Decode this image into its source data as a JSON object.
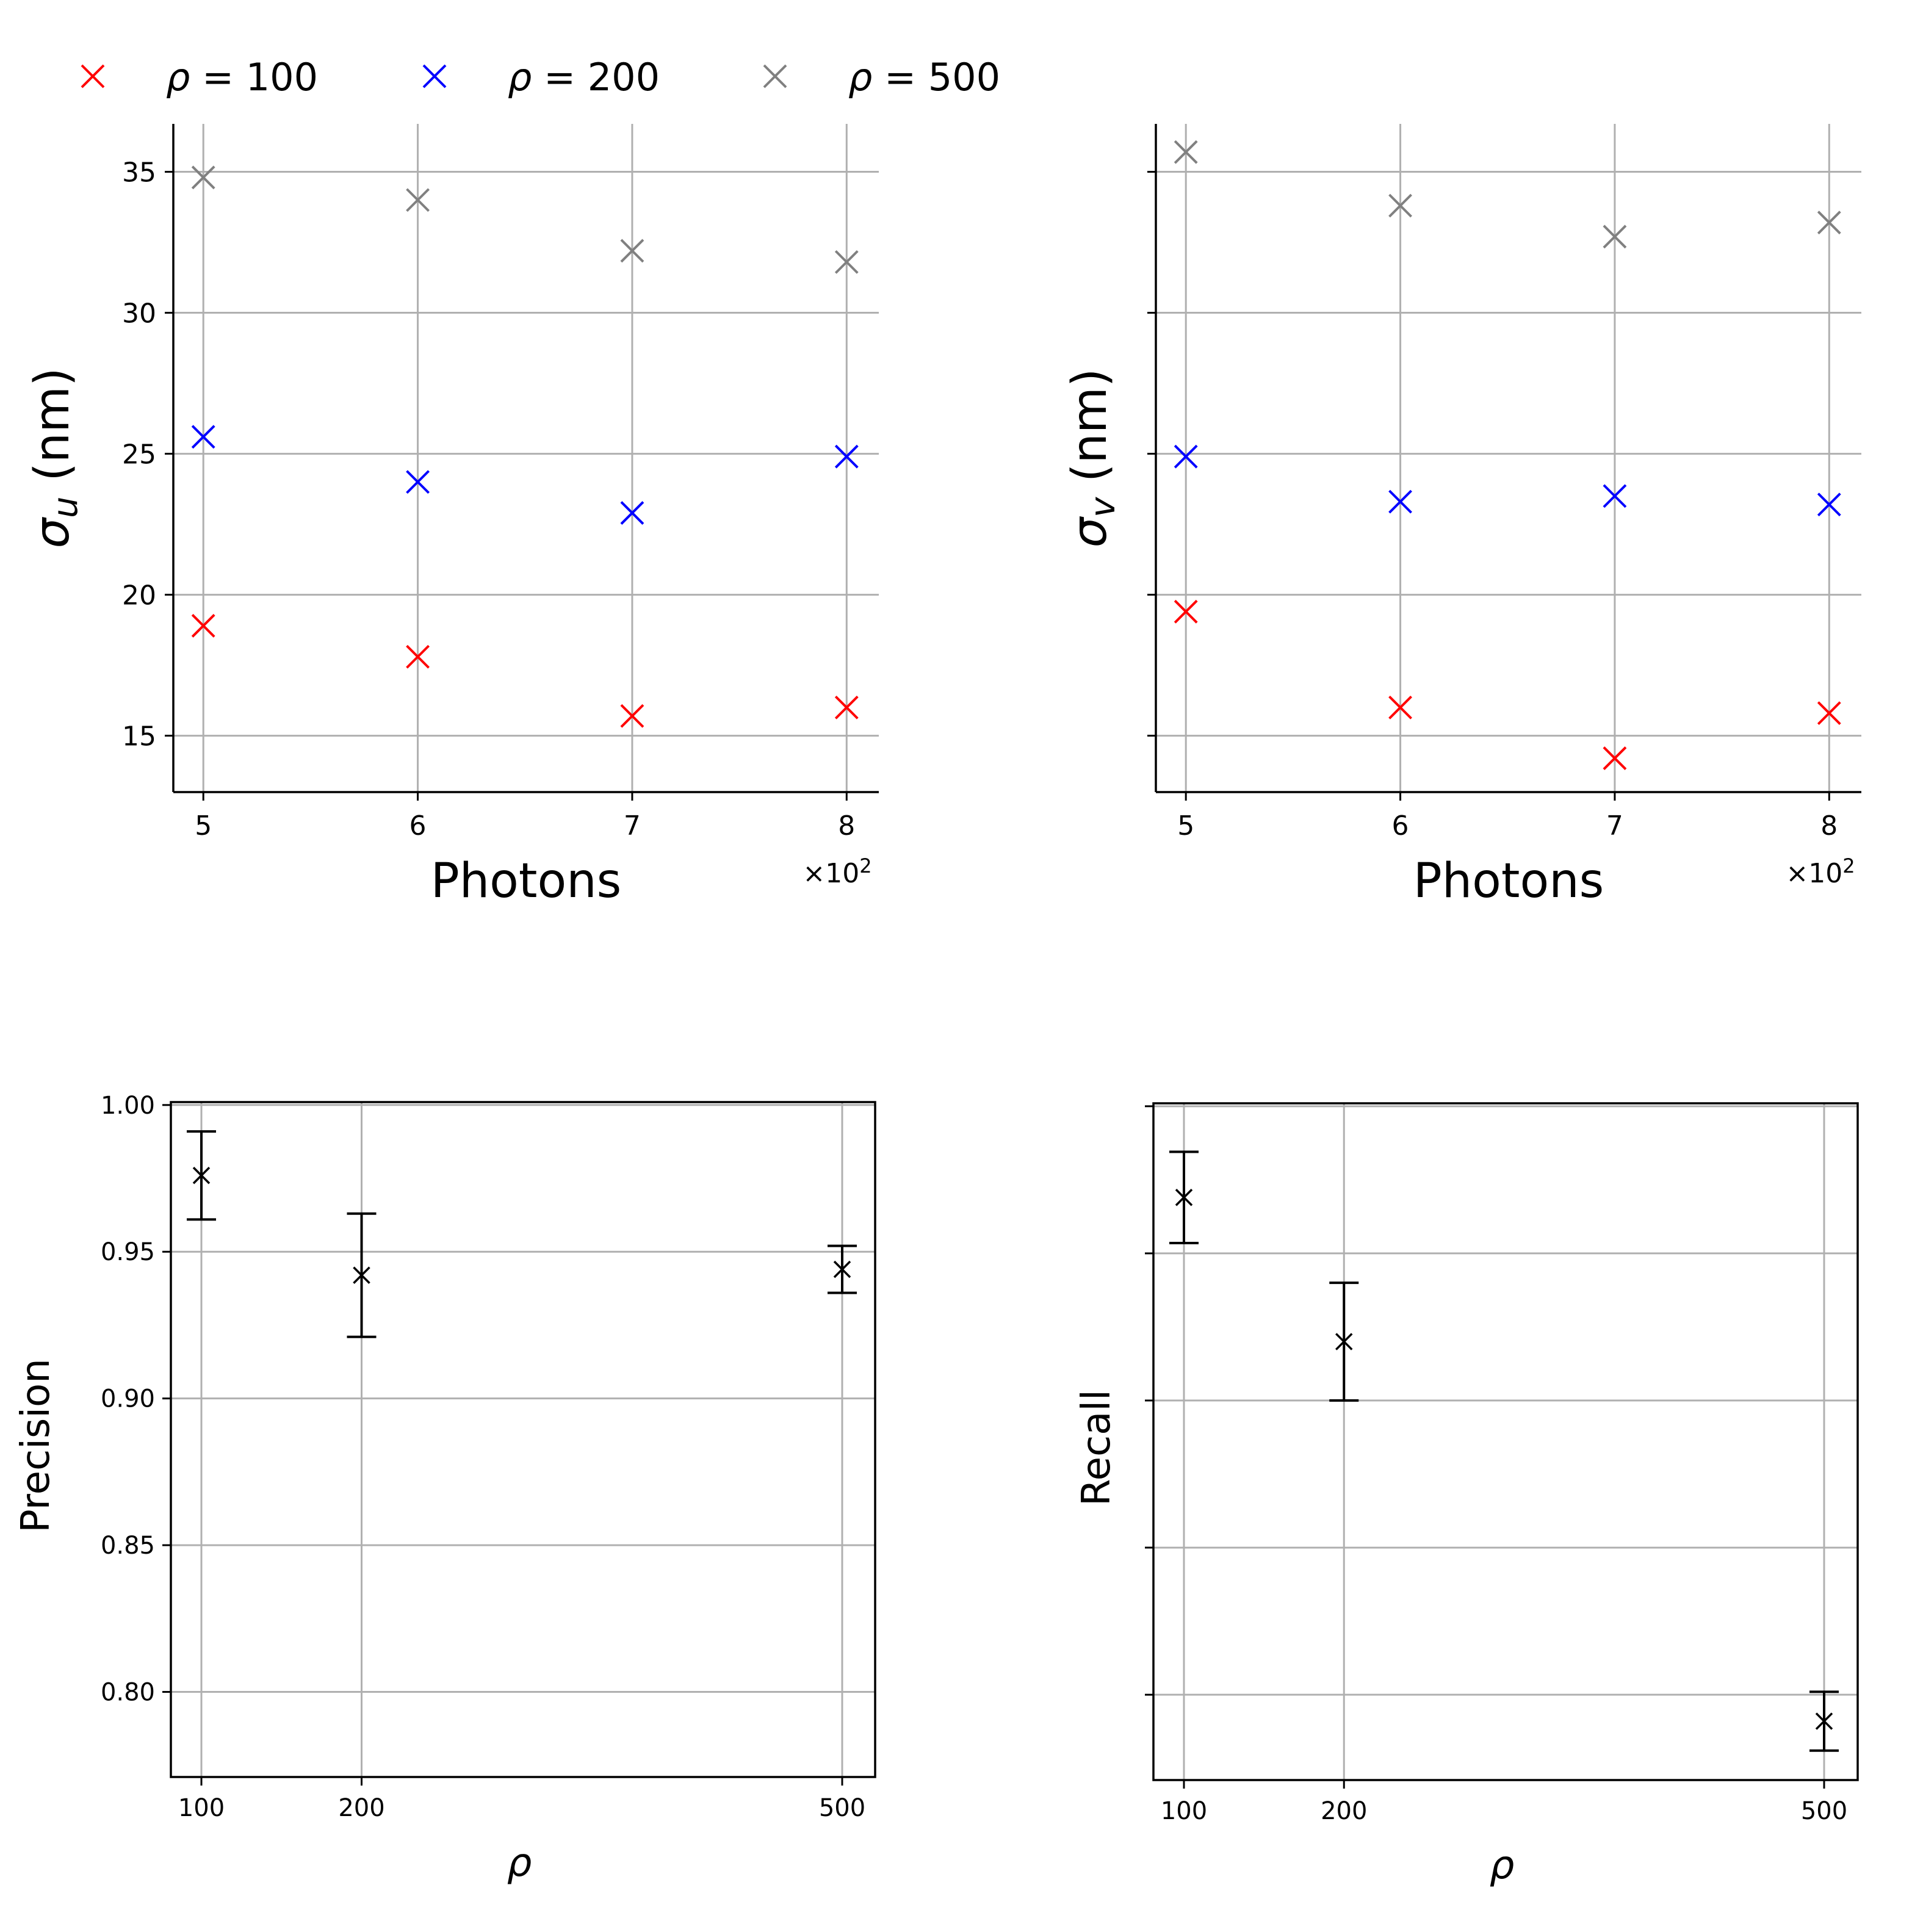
{
  "legend": {
    "entries": [
      {
        "label": "ρ = 100",
        "color": "#ff0000"
      },
      {
        "label": "ρ = 200",
        "color": "#0000ff"
      },
      {
        "label": "ρ = 500",
        "color": "#808080"
      }
    ]
  },
  "chart_data": [
    {
      "type": "scatter",
      "ylabel": "σu (nm)",
      "xlabel": "Photons",
      "x_offset_label": "×10²",
      "x_ticks": [
        "5",
        "6",
        "7",
        "8"
      ],
      "y_ticks": [
        "15",
        "20",
        "25",
        "30",
        "35"
      ],
      "ylim": [
        13,
        36.7
      ],
      "xlim": [
        4.86,
        8.15
      ],
      "grid": true,
      "show_y_tick_labels": true,
      "series": [
        {
          "name": "ρ = 100",
          "color": "#ff0000",
          "x": [
            5,
            6,
            7,
            8
          ],
          "y": [
            18.9,
            17.8,
            15.7,
            16.0
          ]
        },
        {
          "name": "ρ = 200",
          "color": "#0000ff",
          "x": [
            5,
            6,
            7,
            8
          ],
          "y": [
            25.6,
            24.0,
            22.9,
            24.9
          ]
        },
        {
          "name": "ρ = 500",
          "color": "#808080",
          "x": [
            5,
            6,
            7,
            8
          ],
          "y": [
            34.8,
            34.0,
            32.2,
            31.8
          ]
        }
      ]
    },
    {
      "type": "scatter",
      "ylabel": "σv (nm)",
      "xlabel": "Photons",
      "x_offset_label": "×10²",
      "x_ticks": [
        "5",
        "6",
        "7",
        "8"
      ],
      "y_ticks": [
        "15",
        "20",
        "25",
        "30",
        "35"
      ],
      "ylim": [
        13,
        36.7
      ],
      "xlim": [
        4.86,
        8.15
      ],
      "grid": true,
      "show_y_tick_labels": false,
      "series": [
        {
          "name": "ρ = 100",
          "color": "#ff0000",
          "x": [
            5,
            6,
            7,
            8
          ],
          "y": [
            19.4,
            16.0,
            14.2,
            15.8
          ]
        },
        {
          "name": "ρ = 200",
          "color": "#0000ff",
          "x": [
            5,
            6,
            7,
            8
          ],
          "y": [
            24.9,
            23.3,
            23.5,
            23.2
          ]
        },
        {
          "name": "ρ = 500",
          "color": "#808080",
          "x": [
            5,
            6,
            7,
            8
          ],
          "y": [
            35.7,
            33.8,
            32.7,
            33.2
          ]
        }
      ]
    },
    {
      "type": "errorbar",
      "ylabel": "Precision",
      "xlabel": "ρ",
      "x_ticks": [
        "100",
        "200",
        "500"
      ],
      "y_ticks": [
        "0.80",
        "0.85",
        "0.90",
        "0.95",
        "1.00"
      ],
      "ylim": [
        0.771,
        1.001
      ],
      "grid": true,
      "show_y_tick_labels": true,
      "points": [
        {
          "x": 100,
          "y": 0.976,
          "yerr": 0.015
        },
        {
          "x": 200,
          "y": 0.942,
          "yerr": 0.021
        },
        {
          "x": 500,
          "y": 0.944,
          "yerr": 0.008
        }
      ]
    },
    {
      "type": "errorbar",
      "ylabel": "Recall",
      "xlabel": "ρ",
      "x_ticks": [
        "100",
        "200",
        "500"
      ],
      "y_ticks": [
        "0.80",
        "0.85",
        "0.90",
        "0.95",
        "1.00"
      ],
      "ylim": [
        0.771,
        1.001
      ],
      "grid": true,
      "show_y_tick_labels": false,
      "points": [
        {
          "x": 100,
          "y": 0.969,
          "yerr": 0.0155
        },
        {
          "x": 200,
          "y": 0.92,
          "yerr": 0.02
        },
        {
          "x": 500,
          "y": 0.791,
          "yerr": 0.01
        }
      ]
    }
  ]
}
